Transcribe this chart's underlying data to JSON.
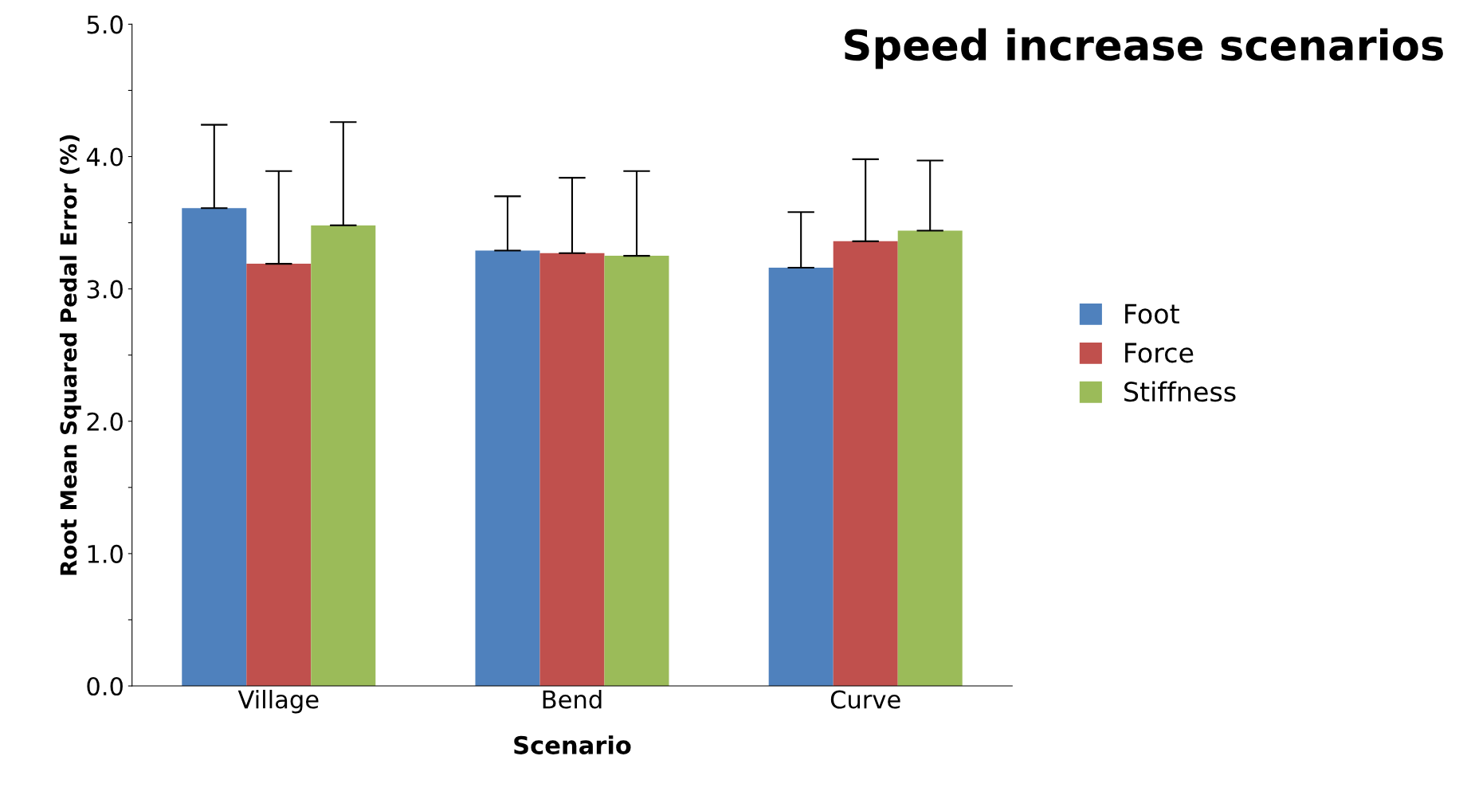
{
  "chart_data": {
    "type": "bar",
    "title": "Speed increase scenarios",
    "xlabel": "Scenario",
    "ylabel": "Root Mean Squared Pedal Error (%)",
    "categories": [
      "Village",
      "Bend",
      "Curve"
    ],
    "series": [
      {
        "name": "Foot",
        "color": "#4f81bd",
        "values": [
          3.61,
          3.29,
          3.16
        ],
        "errors": [
          [
            3.61,
            4.24
          ],
          [
            3.29,
            3.7
          ],
          [
            3.16,
            3.58
          ]
        ]
      },
      {
        "name": "Force",
        "color": "#c0504d",
        "values": [
          3.19,
          3.27,
          3.36
        ],
        "errors": [
          [
            3.19,
            3.89
          ],
          [
            3.27,
            3.84
          ],
          [
            3.36,
            3.98
          ]
        ]
      },
      {
        "name": "Stiffness",
        "color": "#9bbb59",
        "values": [
          3.48,
          3.25,
          3.44
        ],
        "errors": [
          [
            3.48,
            4.26
          ],
          [
            3.25,
            3.89
          ],
          [
            3.44,
            3.97
          ]
        ]
      }
    ],
    "ylim": [
      0,
      5
    ],
    "yticks": [
      {
        "value": 0,
        "label": "0.0"
      },
      {
        "value": 0.5,
        "label": null
      },
      {
        "value": 1,
        "label": "1.0"
      },
      {
        "value": 1.5,
        "label": null
      },
      {
        "value": 2,
        "label": "2.0"
      },
      {
        "value": 2.5,
        "label": null
      },
      {
        "value": 3,
        "label": "3.0"
      },
      {
        "value": 3.5,
        "label": null
      },
      {
        "value": 4,
        "label": "4.0"
      },
      {
        "value": 4.5,
        "label": null
      },
      {
        "value": 5,
        "label": "5.0"
      }
    ],
    "grid": false,
    "legend": "right"
  }
}
